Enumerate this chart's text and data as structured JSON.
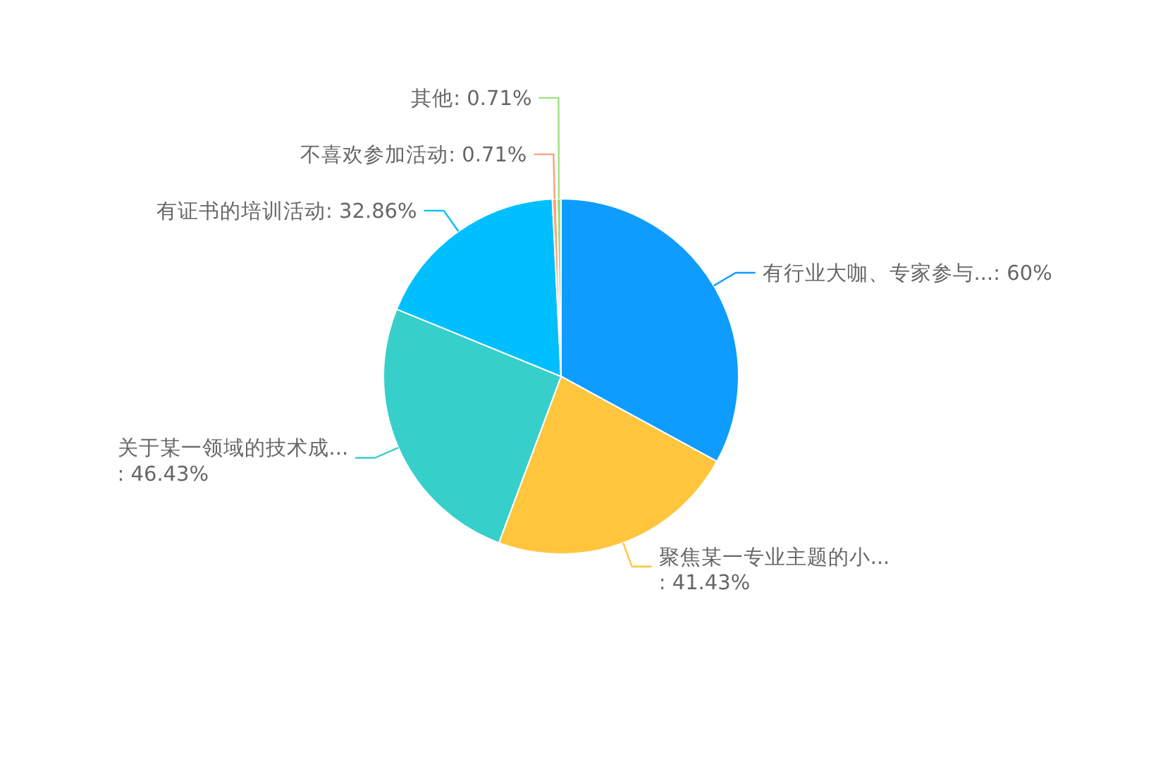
{
  "chart_data": {
    "type": "pie",
    "categories": [
      "有行业大咖、专家参与...",
      "聚焦某一专业主题的小...",
      "关于某一领域的技术成...",
      "有证书的培训活动",
      "不喜欢参加活动",
      "其他"
    ],
    "values": [
      60,
      41.43,
      46.43,
      32.86,
      0.71,
      0.71
    ],
    "colors": [
      "#0e9cff",
      "#ffc53d",
      "#37cfc9",
      "#00bfff",
      "#ff9f7f",
      "#9fe080"
    ],
    "value_labels": [
      ": 60%",
      ": 41.43%",
      ": 46.43%",
      ": 32.86%",
      ": 0.71%",
      ": 0.71%"
    ]
  }
}
